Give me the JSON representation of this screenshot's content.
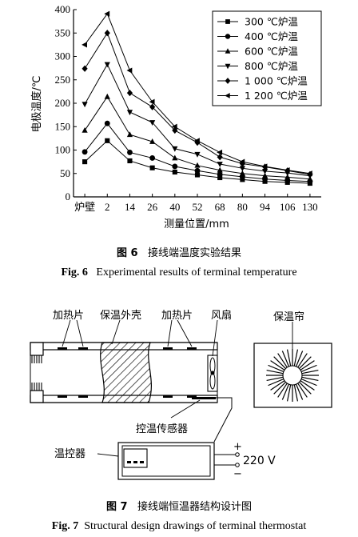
{
  "chart_data": {
    "type": "line",
    "xlabel": "测量位置/mm",
    "ylabel": "电极温度/℃",
    "categories": [
      "炉壁",
      "2",
      "14",
      "26",
      "40",
      "52",
      "68",
      "80",
      "94",
      "106",
      "130"
    ],
    "ylim": [
      0,
      400
    ],
    "yticks": [
      0,
      50,
      100,
      150,
      200,
      250,
      300,
      350,
      400
    ],
    "legend_position": "top-right",
    "series": [
      {
        "name": "300 ℃炉温",
        "marker": "square",
        "values": [
          75,
          120,
          77,
          62,
          53,
          47,
          41,
          37,
          33,
          31,
          29
        ]
      },
      {
        "name": "400 ℃炉温",
        "marker": "circle",
        "values": [
          96,
          157,
          95,
          83,
          65,
          56,
          48,
          43,
          38,
          35,
          33
        ]
      },
      {
        "name": "600 ℃炉温",
        "marker": "triangle-up",
        "values": [
          142,
          214,
          133,
          118,
          83,
          67,
          57,
          50,
          45,
          42,
          38
        ]
      },
      {
        "name": "800 ℃炉温",
        "marker": "triangle-down",
        "values": [
          198,
          283,
          181,
          159,
          103,
          91,
          70,
          61,
          55,
          51,
          45
        ]
      },
      {
        "name": "1 000 ℃炉温",
        "marker": "diamond",
        "values": [
          274,
          350,
          222,
          192,
          142,
          116,
          85,
          71,
          64,
          56,
          48
        ]
      },
      {
        "name": "1 200 ℃炉温",
        "marker": "triangle-left",
        "values": [
          325,
          391,
          270,
          203,
          150,
          120,
          95,
          75,
          65,
          57,
          50
        ]
      }
    ]
  },
  "fig6": {
    "caption_cn_label": "图 6",
    "caption_cn": "接线端温度实验结果",
    "caption_en_label": "Fig. 6",
    "caption_en": "Experimental results of terminal temperature"
  },
  "fig7": {
    "labels": {
      "heater_left": "加热片",
      "shell": "保温外壳",
      "heater_right": "加热片",
      "fan": "风扇",
      "curtain": "保温帘",
      "sensor": "控温传感器",
      "controller": "温控器",
      "plus": "+",
      "minus": "−",
      "voltage": "220 V"
    },
    "caption_cn_label": "图 7",
    "caption_cn": "接线端恒温器结构设计图",
    "caption_en_label": "Fig. 7",
    "caption_en": "Structural design drawings of terminal thermostat"
  }
}
